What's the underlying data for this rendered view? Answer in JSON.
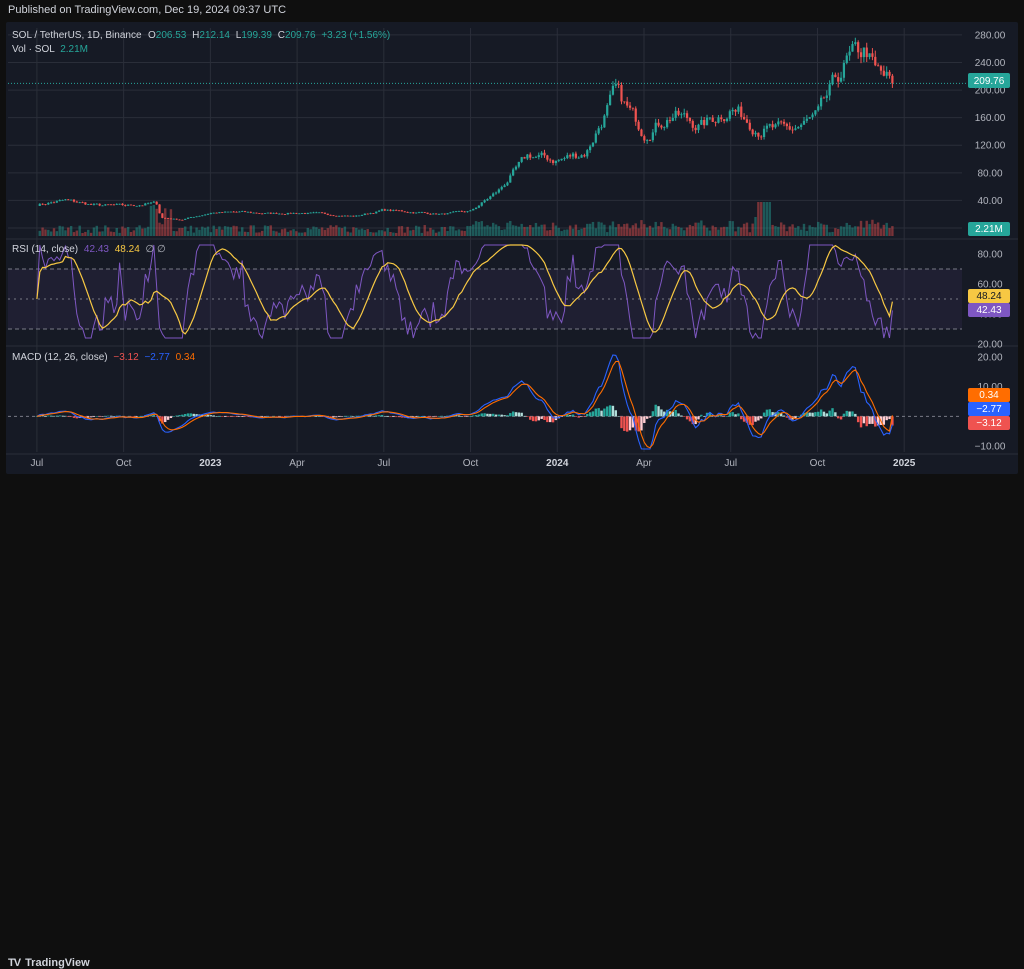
{
  "published": "Published on TradingView.com, Dec 19, 2024 09:37 UTC",
  "brand": "TradingView",
  "brand_icon": "tradingview-logo-icon",
  "colors": {
    "up": "#26a69a",
    "down": "#ef5350",
    "rsi": "#7e57c2",
    "rsi_ma": "#f7c843",
    "macd": "#2962ff",
    "signal": "#ff6d00"
  },
  "legend": {
    "symbol": "SOL / TetherUS, 1D, Binance",
    "open_label": "O",
    "open": "206.53",
    "high_label": "H",
    "high": "212.14",
    "low_label": "L",
    "low": "199.39",
    "close_label": "C",
    "close": "209.76",
    "change": "+3.23 (+1.56%)",
    "vol_label": "Vol · SOL",
    "vol": "2.21M",
    "rsi_label": "RSI (14, close)",
    "rsi": "42.43",
    "rsi_ma": "48.24",
    "rsi_icons": "∅ ∅",
    "macd_label": "MACD (12, 26, close)",
    "macd_hist": "−3.12",
    "macd": "−2.77",
    "macd_signal": "0.34"
  },
  "badges": {
    "price": "209.76",
    "vol": "2.21M",
    "rsi_ma": "48.24",
    "rsi": "42.43",
    "signal": "0.34",
    "macd": "−2.77",
    "hist": "−3.12"
  },
  "chart_data": [
    {
      "type": "candlestick",
      "title": "SOL / TetherUS, 1D, Binance",
      "x_ticks": [
        "Jul",
        "Oct",
        "2023",
        "Apr",
        "Jul",
        "Oct",
        "2024",
        "Apr",
        "Jul",
        "Oct",
        "2025"
      ],
      "x_range": [
        "2022-06",
        "2025-03"
      ],
      "y_ticks": [
        "280.00",
        "240.00",
        "200.00",
        "160.00",
        "120.00",
        "80.00",
        "40.00",
        "0.00"
      ],
      "ylim": [
        0,
        290
      ],
      "last_price": 209.76,
      "price_path": [
        [
          "2022-07",
          34
        ],
        [
          "2022-08",
          40
        ],
        [
          "2022-09",
          33
        ],
        [
          "2022-10",
          32
        ],
        [
          "2022-11-05",
          36
        ],
        [
          "2022-11-10",
          15
        ],
        [
          "2022-12",
          12
        ],
        [
          "2023-01",
          22
        ],
        [
          "2023-02",
          23
        ],
        [
          "2023-03",
          21
        ],
        [
          "2023-04",
          22
        ],
        [
          "2023-05",
          20
        ],
        [
          "2023-06",
          17
        ],
        [
          "2023-07",
          26
        ],
        [
          "2023-08",
          23
        ],
        [
          "2023-09",
          20
        ],
        [
          "2023-10",
          24
        ],
        [
          "2023-11",
          55
        ],
        [
          "2023-12",
          105
        ],
        [
          "2024-01",
          98
        ],
        [
          "2024-02",
          110
        ],
        [
          "2024-03",
          195
        ],
        [
          "2024-04",
          140
        ],
        [
          "2024-05",
          165
        ],
        [
          "2024-06",
          148
        ],
        [
          "2024-07",
          175
        ],
        [
          "2024-08",
          145
        ],
        [
          "2024-09",
          140
        ],
        [
          "2024-10",
          160
        ],
        [
          "2024-11",
          240
        ],
        [
          "2024-11-22",
          258
        ],
        [
          "2024-12",
          225
        ],
        [
          "2024-12-19",
          209.76
        ]
      ]
    },
    {
      "type": "bar",
      "title": "Vol · SOL",
      "last_value": "2.21M"
    },
    {
      "type": "line",
      "title": "RSI (14, close)",
      "y_ticks": [
        "80.00",
        "60.00",
        "40.00",
        "20.00"
      ],
      "ylim": [
        20,
        88
      ],
      "bands": [
        70,
        50,
        30
      ],
      "series": [
        {
          "name": "RSI",
          "last": 42.43
        },
        {
          "name": "RSI MA",
          "last": 48.24
        }
      ]
    },
    {
      "type": "line",
      "title": "MACD (12, 26, close)",
      "y_ticks": [
        "20.00",
        "10.00",
        "0.00",
        "−10.00"
      ],
      "ylim": [
        -12,
        23
      ],
      "series": [
        {
          "name": "MACD",
          "last": -2.77
        },
        {
          "name": "Signal",
          "last": 0.34
        },
        {
          "name": "Histogram",
          "last": -3.12
        }
      ]
    }
  ]
}
